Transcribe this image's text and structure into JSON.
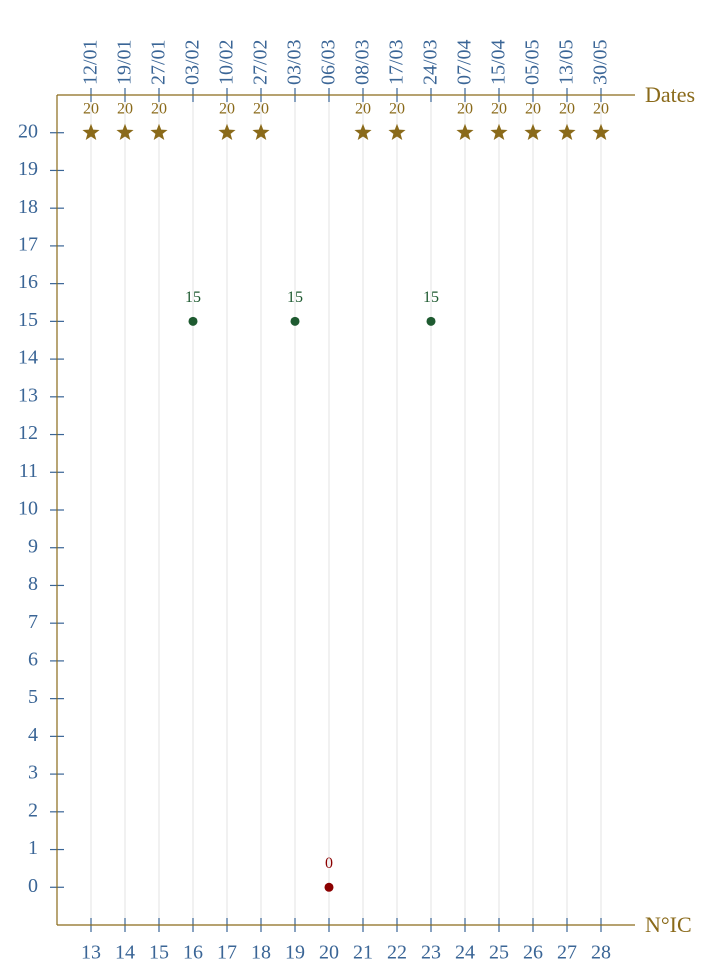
{
  "chart_data": {
    "type": "scatter",
    "x_label": "N°IC",
    "top_label": "Dates",
    "x": [
      13,
      14,
      15,
      16,
      17,
      18,
      19,
      20,
      21,
      22,
      23,
      24,
      25,
      26,
      27,
      28
    ],
    "top_categories": [
      "12/01",
      "19/01",
      "27/01",
      "03/02",
      "10/02",
      "27/02",
      "03/03",
      "06/03",
      "08/03",
      "17/03",
      "24/03",
      "07/04",
      "15/04",
      "05/05",
      "13/05",
      "30/05"
    ],
    "values": [
      20,
      20,
      20,
      15,
      20,
      20,
      15,
      0,
      20,
      20,
      15,
      20,
      20,
      20,
      20,
      20
    ],
    "point_colors": [
      "#8a6a1a",
      "#8a6a1a",
      "#8a6a1a",
      "#1e5a30",
      "#8a6a1a",
      "#8a6a1a",
      "#1e5a30",
      "#8b0000",
      "#8a6a1a",
      "#8a6a1a",
      "#1e5a30",
      "#8a6a1a",
      "#8a6a1a",
      "#8a6a1a",
      "#8a6a1a",
      "#8a6a1a"
    ],
    "point_markers": [
      "star",
      "star",
      "star",
      "circle",
      "star",
      "star",
      "circle",
      "circle",
      "star",
      "star",
      "circle",
      "star",
      "star",
      "star",
      "star",
      "star"
    ],
    "xlim": [
      12,
      29
    ],
    "xticks": [
      13,
      14,
      15,
      16,
      17,
      18,
      19,
      20,
      21,
      22,
      23,
      24,
      25,
      26,
      27,
      28
    ],
    "ylim": [
      -1,
      21
    ],
    "yticks": [
      0,
      1,
      2,
      3,
      4,
      5,
      6,
      7,
      8,
      9,
      10,
      11,
      12,
      13,
      14,
      15,
      16,
      17,
      18,
      19,
      20
    ],
    "axis_color": "#8a6a1a",
    "tick_label_color": "#3a6596",
    "grid": true
  }
}
